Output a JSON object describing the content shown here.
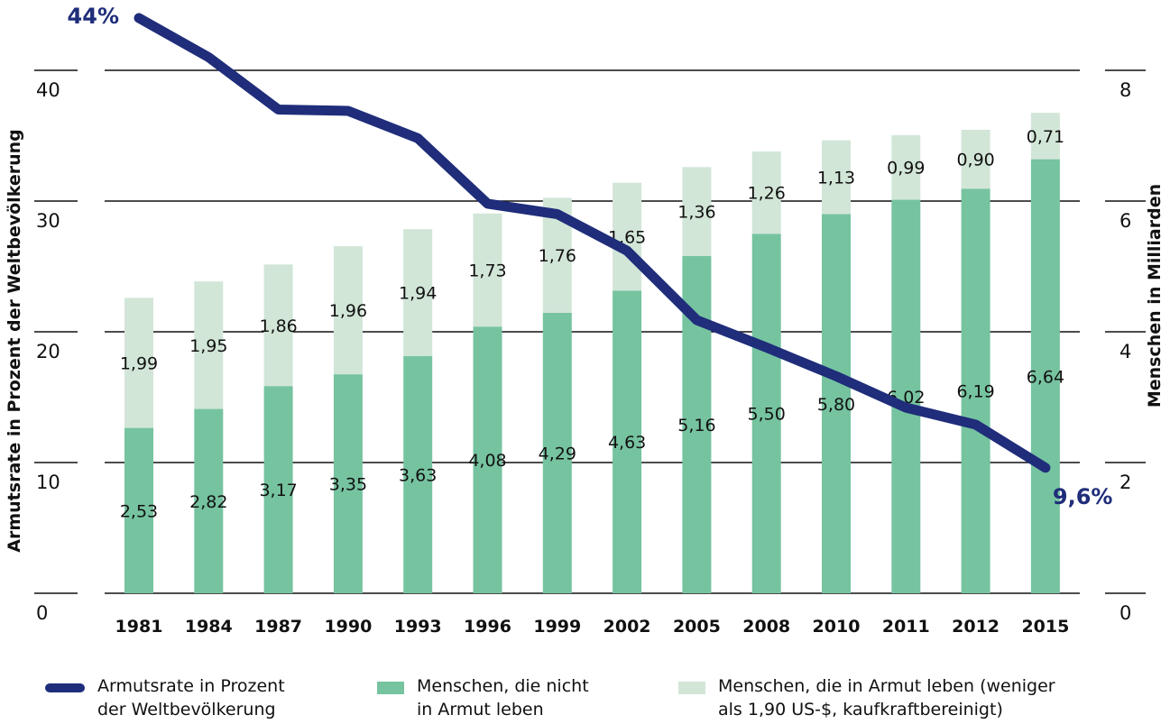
{
  "chart_data": {
    "type": "bar",
    "categories": [
      "1981",
      "1984",
      "1987",
      "1990",
      "1993",
      "1996",
      "1999",
      "2002",
      "2005",
      "2008",
      "2010",
      "2011",
      "2012",
      "2015"
    ],
    "series": [
      {
        "name": "Menschen, die nicht in Armut leben",
        "kind": "stacked-bar",
        "axis": "right",
        "color": "#76c3a0",
        "values": [
          2.53,
          2.82,
          3.17,
          3.35,
          3.63,
          4.08,
          4.29,
          4.63,
          5.16,
          5.5,
          5.8,
          6.02,
          6.19,
          6.64
        ],
        "labels": [
          "2,53",
          "2,82",
          "3,17",
          "3,35",
          "3,63",
          "4,08",
          "4,29",
          "4,63",
          "5,16",
          "5,50",
          "5,80",
          "6,02",
          "6,19",
          "6,64"
        ]
      },
      {
        "name": "Menschen, die in Armut leben (weniger als 1,90 US-$, kaufkraftbereinigt)",
        "kind": "stacked-bar",
        "axis": "right",
        "color": "#d2e6d8",
        "values": [
          1.99,
          1.95,
          1.86,
          1.96,
          1.94,
          1.73,
          1.76,
          1.65,
          1.36,
          1.26,
          1.13,
          0.99,
          0.9,
          0.71
        ],
        "labels": [
          "1,99",
          "1,95",
          "1,86",
          "1,96",
          "1,94",
          "1,73",
          "1,76",
          "1,65",
          "1,36",
          "1,26",
          "1,13",
          "0,99",
          "0,90",
          "0,71"
        ]
      },
      {
        "name": "Armutsrate in Prozent der Weltbevölkerung",
        "kind": "line",
        "axis": "left",
        "color": "#1f2d7a",
        "values": [
          44.0,
          41.0,
          37.0,
          36.9,
          34.8,
          29.8,
          29.0,
          26.2,
          20.9,
          18.8,
          16.6,
          14.2,
          12.9,
          9.6
        ],
        "start_label": "44%",
        "end_label": "9,6%"
      }
    ],
    "y_left": {
      "label": "Armutsrate in Prozent der Weltbevölkerung",
      "ticks": [
        "0",
        "10",
        "20",
        "30",
        "40"
      ],
      "range": [
        0,
        40
      ]
    },
    "y_right": {
      "label": "Menschen in Milliarden",
      "ticks": [
        "0",
        "2",
        "4",
        "6",
        "8"
      ],
      "range": [
        0,
        8
      ]
    },
    "grid": true,
    "legend_position": "bottom"
  },
  "legend": {
    "line_label": "Armutsrate in Prozent\nder Weltbevölkerung",
    "dark_label": "Menschen, die nicht\nin Armut leben",
    "light_label": "Menschen, die in Armut leben (weniger\nals 1,90 US-$, kaufkraftbereinigt)"
  }
}
